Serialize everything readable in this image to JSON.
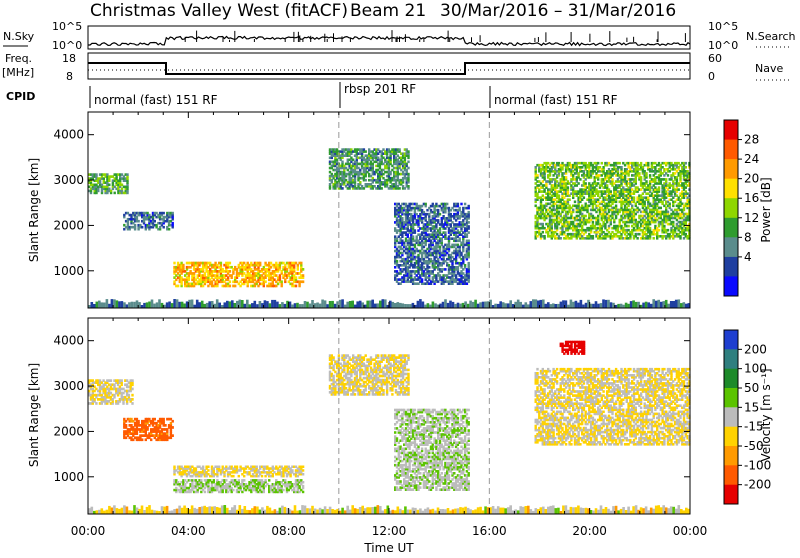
{
  "header": {
    "title": "Christmas Valley West (fitACF)",
    "beam": "Beam 21",
    "dates": "30/Mar/2016 – 31/Mar/2016"
  },
  "strip": {
    "nsky_label": "N.Sky",
    "nsky_ticks": [
      "10^5",
      "10^0"
    ],
    "nsearch_label": "N.Search",
    "freq_label_line1": "Freq.",
    "freq_label_line2": "[MHz]",
    "freq_ticks": [
      "18",
      "8"
    ],
    "nave_ticks": [
      "60",
      "0"
    ],
    "nave_label": "Nave",
    "cpid_label": "CPID",
    "modes": [
      {
        "label": "normal (fast) 151 RF",
        "start": 0
      },
      {
        "label": "rbsp 201 RF",
        "start": 10
      },
      {
        "label": "normal (fast) 151 RF",
        "start": 16
      }
    ]
  },
  "axes": {
    "x_label": "Time UT",
    "x_ticks": [
      "00:00",
      "04:00",
      "08:00",
      "12:00",
      "16:00",
      "20:00",
      "00:00"
    ],
    "y_label": "Slant Range [km]",
    "y_ticks": [
      "1000",
      "2000",
      "3000",
      "4000"
    ]
  },
  "chart_data": [
    {
      "type": "heatmap",
      "name": "power-panel",
      "xlabel": "Time UT",
      "ylabel": "Slant Range [km]",
      "xlim": [
        0,
        24
      ],
      "ylim": [
        180,
        4500
      ],
      "colorbar_label": "Power [dB]",
      "colorbar_ticks": [
        "28",
        "24",
        "20",
        "16",
        "12",
        "8",
        "4"
      ],
      "colorbar_colors": [
        "#e60000",
        "#ff5a00",
        "#ff9a00",
        "#ffe000",
        "#8fd600",
        "#2f9c2f",
        "#5a8c8c",
        "#1f3fa0",
        "#0a0aff"
      ],
      "echo_regions": [
        {
          "t0": 0.0,
          "t1": 1.6,
          "r0": 2700,
          "r1": 3150,
          "power": 14
        },
        {
          "t0": 1.4,
          "t1": 3.4,
          "r0": 1900,
          "r1": 2300,
          "power": 8
        },
        {
          "t0": 3.4,
          "t1": 8.6,
          "r0": 650,
          "r1": 1200,
          "power": 24
        },
        {
          "t0": 9.6,
          "t1": 12.8,
          "r0": 2800,
          "r1": 3700,
          "power": 12
        },
        {
          "t0": 12.2,
          "t1": 15.2,
          "r0": 700,
          "r1": 2500,
          "power": 8
        },
        {
          "t0": 17.8,
          "t1": 24.0,
          "r0": 1700,
          "r1": 3400,
          "power": 16
        }
      ]
    },
    {
      "type": "heatmap",
      "name": "velocity-panel",
      "xlabel": "Time UT",
      "ylabel": "Slant Range [km]",
      "xlim": [
        0,
        24
      ],
      "ylim": [
        180,
        4500
      ],
      "colorbar_label": "Velocity [m s⁻¹]",
      "colorbar_ticks": [
        "200",
        "100",
        "50",
        "15",
        "-15",
        "-50",
        "-100",
        "-200"
      ],
      "colorbar_colors": [
        "#1f3fd0",
        "#2f7f7f",
        "#1d8a2a",
        "#5bc400",
        "#bcbcbc",
        "#ffd200",
        "#ff9a00",
        "#ff5a00",
        "#e60000"
      ],
      "echo_regions": [
        {
          "t0": 0.0,
          "t1": 1.8,
          "r0": 2600,
          "r1": 3150,
          "velocity": 0
        },
        {
          "t0": 1.4,
          "t1": 3.4,
          "r0": 1800,
          "r1": 2300,
          "velocity": -90
        },
        {
          "t0": 3.4,
          "t1": 8.6,
          "r0": 1000,
          "r1": 1250,
          "velocity": 0
        },
        {
          "t0": 3.4,
          "t1": 8.6,
          "r0": 650,
          "r1": 950,
          "velocity": 30
        },
        {
          "t0": 9.6,
          "t1": 12.8,
          "r0": 2800,
          "r1": 3700,
          "velocity": 0
        },
        {
          "t0": 12.2,
          "t1": 15.2,
          "r0": 700,
          "r1": 2500,
          "velocity": 25
        },
        {
          "t0": 17.8,
          "t1": 24.0,
          "r0": 1700,
          "r1": 3400,
          "velocity": 0
        },
        {
          "t0": 18.8,
          "t1": 19.8,
          "r0": 3700,
          "r1": 4000,
          "velocity": -170
        }
      ]
    }
  ]
}
